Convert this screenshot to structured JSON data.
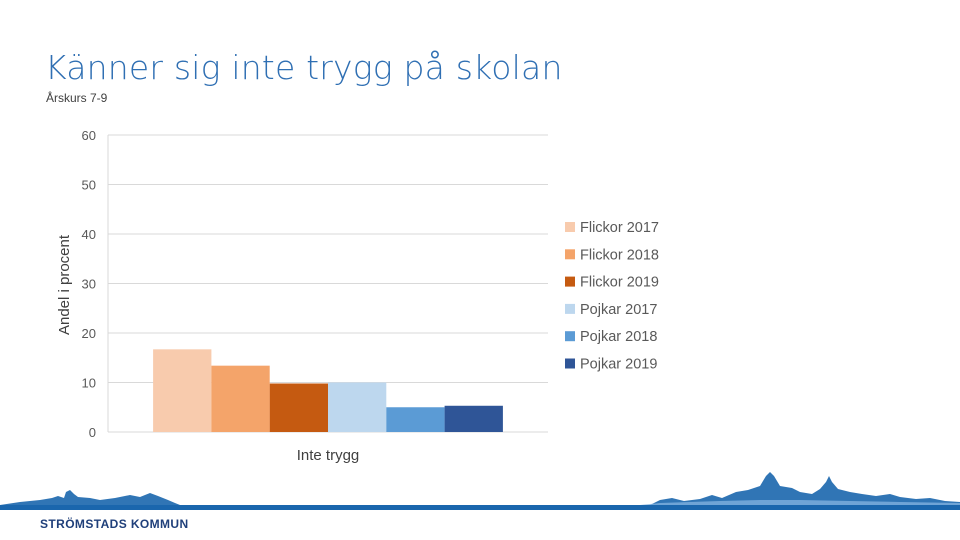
{
  "slide": {
    "title": "Känner sig inte trygg på skolan",
    "subtitle": "Årskurs 7-9"
  },
  "footer": {
    "organization": "STRÖMSTADS KOMMUN",
    "brand_color": "#1a66ad",
    "logo_text_color": "#1f3f7a"
  },
  "chart_data": {
    "type": "bar",
    "categories": [
      "Inte trygg"
    ],
    "ylabel": "Andel i procent",
    "ylim": [
      0,
      60
    ],
    "yticks": [
      0,
      10,
      20,
      30,
      40,
      50,
      60
    ],
    "grid": true,
    "legend_position": "right",
    "series": [
      {
        "name": "Flickor 2017",
        "values": [
          16.7
        ],
        "color": "#f8cbad"
      },
      {
        "name": "Flickor 2018",
        "values": [
          13.4
        ],
        "color": "#f4a46a"
      },
      {
        "name": "Flickor 2019",
        "values": [
          9.8
        ],
        "color": "#c55a11"
      },
      {
        "name": "Pojkar 2017",
        "values": [
          10.0
        ],
        "color": "#bdd7ee"
      },
      {
        "name": "Pojkar 2018",
        "values": [
          5.0
        ],
        "color": "#5b9bd5"
      },
      {
        "name": "Pojkar 2019",
        "values": [
          5.3
        ],
        "color": "#2f5597"
      }
    ]
  }
}
